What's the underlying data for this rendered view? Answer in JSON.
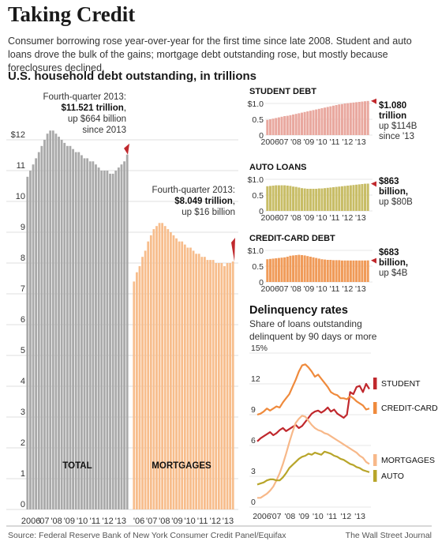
{
  "title": "Taking Credit",
  "subtitle": "Consumer borrowing rose year-over-year for the first time since late 2008. Student and auto loans drove the bulk of the gains; mortgage debt outstanding rose, but mostly because foreclosures declined.",
  "source": "Source: Federal Reserve Bank of New York Consumer Credit Panel/Equifax",
  "credit": "The Wall Street Journal",
  "colors": {
    "total": "#a9a9a9",
    "mortgages": "#f7bd8c",
    "student": "#e9a89f",
    "auto": "#c8bd66",
    "credit_card": "#f09b59",
    "marker": "#c0282d",
    "del_student": "#c0282d",
    "del_credit_card": "#ef8a3c",
    "del_mortgages": "#f7b889",
    "del_auto": "#b8a52a"
  },
  "chart_data": [
    {
      "id": "household-debt",
      "type": "bar",
      "title": "U.S. household debt outstanding, in trillions",
      "ylim": [
        0,
        13
      ],
      "yticks": [
        "0",
        "1",
        "2",
        "3",
        "4",
        "5",
        "6",
        "7",
        "8",
        "9",
        "10",
        "11",
        "$12"
      ],
      "xticks": [
        "2006",
        "'07",
        "'08",
        "'09",
        "'10",
        "'11",
        "'12",
        "'13"
      ],
      "xticks2": [
        "'06",
        "'07",
        "'08",
        "'09",
        "'10",
        "'11",
        "'12",
        "'13"
      ],
      "series": [
        {
          "name": "TOTAL",
          "values": [
            10.8,
            11.0,
            11.2,
            11.4,
            11.6,
            11.8,
            12.0,
            12.2,
            12.3,
            12.3,
            12.2,
            12.1,
            12.0,
            11.9,
            11.8,
            11.8,
            11.7,
            11.6,
            11.6,
            11.5,
            11.4,
            11.4,
            11.3,
            11.3,
            11.2,
            11.1,
            11.0,
            11.0,
            11.0,
            10.9,
            10.9,
            11.0,
            11.1,
            11.2,
            11.3,
            11.52
          ]
        },
        {
          "name": "MORTGAGES",
          "values": [
            7.4,
            7.7,
            7.9,
            8.2,
            8.4,
            8.7,
            8.9,
            9.1,
            9.2,
            9.3,
            9.3,
            9.2,
            9.1,
            9.0,
            8.9,
            8.8,
            8.7,
            8.7,
            8.6,
            8.5,
            8.5,
            8.4,
            8.3,
            8.3,
            8.2,
            8.2,
            8.1,
            8.1,
            8.1,
            8.0,
            8.0,
            8.0,
            7.9,
            8.0,
            8.0,
            8.05
          ]
        }
      ],
      "annotations": [
        {
          "l1": "Fourth-quarter 2013:",
          "l2": "$11.521 trillion",
          "l2b": ",",
          "l3": "up $664 billion",
          "l4": "since 2013"
        },
        {
          "l1": "Fourth-quarter 2013:",
          "l2": "$8.049 trillion",
          "l2b": ",",
          "l3": "up $16 billion"
        }
      ]
    },
    {
      "id": "student-debt",
      "type": "bar",
      "title": "STUDENT DEBT",
      "ylim": [
        0,
        1.0
      ],
      "yticks": [
        "0",
        "0.5",
        "$1.0"
      ],
      "xticks": [
        "2006",
        "'07",
        "'08",
        "'09",
        "'10",
        "'11",
        "'12",
        "'13"
      ],
      "values": [
        0.48,
        0.5,
        0.52,
        0.54,
        0.56,
        0.58,
        0.6,
        0.61,
        0.63,
        0.65,
        0.67,
        0.69,
        0.71,
        0.73,
        0.75,
        0.77,
        0.79,
        0.81,
        0.83,
        0.85,
        0.87,
        0.89,
        0.91,
        0.93,
        0.95,
        0.97,
        0.98,
        1.0,
        1.01,
        1.02,
        1.03,
        1.04,
        1.05,
        1.06,
        1.07,
        1.08
      ],
      "label_value": "$1.080",
      "label_unit": "trillion",
      "label_change": "up $114B",
      "label_extra": "since '13"
    },
    {
      "id": "auto-loans",
      "type": "bar",
      "title": "AUTO LOANS",
      "ylim": [
        0,
        1.0
      ],
      "yticks": [
        "0",
        "0.5",
        "$1.0"
      ],
      "xticks": [
        "2006",
        "'07",
        "'08",
        "'09",
        "'10",
        "'11",
        "'12",
        "'13"
      ],
      "values": [
        0.78,
        0.79,
        0.8,
        0.81,
        0.81,
        0.81,
        0.81,
        0.8,
        0.79,
        0.77,
        0.76,
        0.74,
        0.72,
        0.71,
        0.7,
        0.7,
        0.7,
        0.7,
        0.71,
        0.71,
        0.72,
        0.73,
        0.74,
        0.75,
        0.76,
        0.77,
        0.78,
        0.79,
        0.8,
        0.81,
        0.82,
        0.83,
        0.84,
        0.85,
        0.86,
        0.863
      ],
      "label_value": "$863",
      "label_unit": "billion,",
      "label_change": "up $80B"
    },
    {
      "id": "credit-card-debt",
      "type": "bar",
      "title": "CREDIT-CARD DEBT",
      "ylim": [
        0,
        1.0
      ],
      "yticks": [
        "0",
        "0.5",
        "$1.0"
      ],
      "xticks": [
        "2006",
        "'07",
        "'08",
        "'09",
        "'10",
        "'11",
        "'12",
        "'13"
      ],
      "values": [
        0.72,
        0.73,
        0.74,
        0.75,
        0.76,
        0.77,
        0.78,
        0.8,
        0.83,
        0.84,
        0.85,
        0.86,
        0.85,
        0.84,
        0.82,
        0.8,
        0.78,
        0.76,
        0.74,
        0.72,
        0.71,
        0.7,
        0.7,
        0.69,
        0.69,
        0.69,
        0.68,
        0.68,
        0.68,
        0.68,
        0.68,
        0.68,
        0.68,
        0.68,
        0.68,
        0.683
      ],
      "label_value": "$683",
      "label_unit": "billion,",
      "label_change": "up $4B"
    },
    {
      "id": "delinquency",
      "type": "line",
      "title": "Delinquency rates",
      "subtitle_l1": "Share of loans outstanding",
      "subtitle_l2": "delinquent by 90 days or more",
      "ylim": [
        0,
        15
      ],
      "yticks": [
        "0",
        "3",
        "6",
        "9",
        "12",
        "15%"
      ],
      "xticks": [
        "2006",
        "'07",
        "'08",
        "'09",
        "'10",
        "'11",
        "'12",
        "'13"
      ],
      "series": [
        {
          "name": "STUDENT",
          "values": [
            6.4,
            6.7,
            6.9,
            7.1,
            7.3,
            7.0,
            7.2,
            7.5,
            7.7,
            7.4,
            7.6,
            7.8,
            8.0,
            7.7,
            7.9,
            8.3,
            8.7,
            9.1,
            9.3,
            9.4,
            9.2,
            9.4,
            9.7,
            9.3,
            9.5,
            9.1,
            8.9,
            8.7,
            9.0,
            11.2,
            11.0,
            11.7,
            11.8,
            11.2,
            12.0,
            11.5
          ]
        },
        {
          "name": "CREDIT-CARD",
          "values": [
            9.0,
            9.1,
            9.3,
            9.6,
            9.4,
            9.6,
            9.8,
            9.7,
            10.2,
            10.6,
            11.0,
            11.7,
            12.4,
            13.2,
            13.8,
            13.9,
            13.6,
            13.2,
            12.7,
            12.9,
            12.5,
            12.1,
            11.7,
            11.2,
            11.0,
            10.9,
            10.6,
            10.6,
            10.5,
            10.8,
            10.6,
            10.3,
            10.1,
            9.9,
            9.5,
            9.6
          ]
        },
        {
          "name": "MORTGAGES",
          "values": [
            0.9,
            0.9,
            1.1,
            1.3,
            1.6,
            2.0,
            2.6,
            3.3,
            4.2,
            5.2,
            6.3,
            7.3,
            8.2,
            8.6,
            8.9,
            8.8,
            8.4,
            8.0,
            7.7,
            7.5,
            7.4,
            7.2,
            7.1,
            6.9,
            6.7,
            6.5,
            6.3,
            6.1,
            5.9,
            5.7,
            5.5,
            5.3,
            5.0,
            4.8,
            4.4,
            4.2
          ]
        },
        {
          "name": "AUTO",
          "values": [
            2.2,
            2.3,
            2.4,
            2.6,
            2.7,
            2.7,
            2.6,
            2.6,
            2.9,
            3.3,
            3.8,
            4.1,
            4.4,
            4.7,
            4.9,
            5.0,
            5.2,
            5.1,
            5.3,
            5.2,
            5.1,
            5.4,
            5.3,
            5.2,
            5.0,
            4.9,
            4.7,
            4.6,
            4.4,
            4.2,
            4.1,
            3.9,
            3.8,
            3.6,
            3.5,
            3.4
          ]
        }
      ]
    }
  ]
}
